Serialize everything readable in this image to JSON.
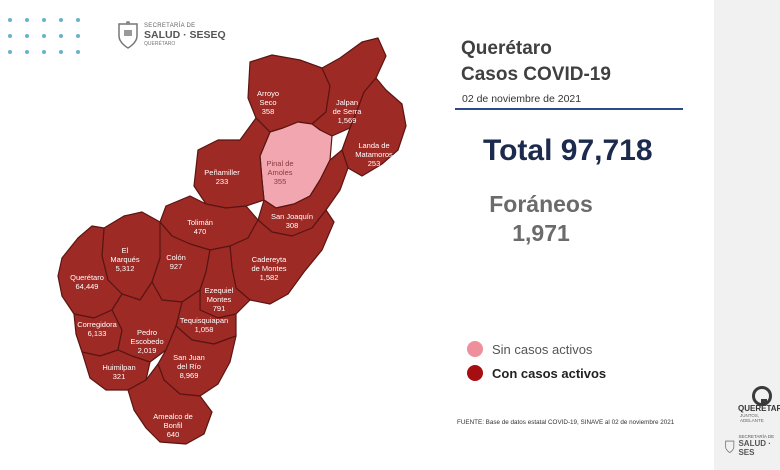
{
  "header": {
    "org_line1": "SECRETARÍA DE",
    "org_line2": "SALUD · SESEQ",
    "org_line3": "QUERÉTARO"
  },
  "title_line1": "Querétaro",
  "title_line2": "Casos COVID-19",
  "date": "02 de noviembre de 2021",
  "total": "Total 97,718",
  "foraneos_label": "Foráneos",
  "foraneos_value": "1,971",
  "legend": [
    {
      "label": "Sin casos activos",
      "color": "#ee8f9b"
    },
    {
      "label": "Con casos activos",
      "color": "#a50f12"
    }
  ],
  "source": "FUENTE:  Base de datos estatal  COVID-19,  SINAVE  al 02 de noviembre 2021",
  "colors": {
    "active": "#9e2a25",
    "inactive": "#f2a7b0",
    "border": "#5a1512",
    "accent_rule": "#2d4a8a"
  },
  "municipalities": [
    {
      "name_lines": [
        "Arroyo",
        "Seco"
      ],
      "cases": "358",
      "status": "active"
    },
    {
      "name_lines": [
        "Jalpan",
        "de Serra"
      ],
      "cases": "1,569",
      "status": "active"
    },
    {
      "name_lines": [
        "Landa de",
        "Matamoros"
      ],
      "cases": "253",
      "status": "active"
    },
    {
      "name_lines": [
        "Pinal de",
        "Amoles"
      ],
      "cases": "355",
      "status": "inactive"
    },
    {
      "name_lines": [
        "Peñamiller"
      ],
      "cases": "233",
      "status": "active"
    },
    {
      "name_lines": [
        "San Joaquín"
      ],
      "cases": "308",
      "status": "active"
    },
    {
      "name_lines": [
        "Tolimán"
      ],
      "cases": "470",
      "status": "active"
    },
    {
      "name_lines": [
        "Cadereyta",
        "de Montes"
      ],
      "cases": "1,582",
      "status": "active"
    },
    {
      "name_lines": [
        "El",
        "Marqués"
      ],
      "cases": "5,312",
      "status": "active"
    },
    {
      "name_lines": [
        "Colón"
      ],
      "cases": "927",
      "status": "active"
    },
    {
      "name_lines": [
        "Querétaro"
      ],
      "cases": "64,449",
      "status": "active"
    },
    {
      "name_lines": [
        "Ezequiel",
        "Montes"
      ],
      "cases": "791",
      "status": "active"
    },
    {
      "name_lines": [
        "Tequisquiapan"
      ],
      "cases": "1,058",
      "status": "active"
    },
    {
      "name_lines": [
        "Corregidora"
      ],
      "cases": "6,133",
      "status": "active"
    },
    {
      "name_lines": [
        "Pedro",
        "Escobedo"
      ],
      "cases": "2,019",
      "status": "active"
    },
    {
      "name_lines": [
        "San Juan",
        "del Río"
      ],
      "cases": "8,969",
      "status": "active"
    },
    {
      "name_lines": [
        "Huimilpan"
      ],
      "cases": "321",
      "status": "active"
    },
    {
      "name_lines": [
        "Amealco de",
        "Bonfil"
      ],
      "cases": "640",
      "status": "active"
    }
  ],
  "right_panel": {
    "brand": "QUERÉTARO",
    "brand_sub": "JUNTOS, ADELANTE",
    "bottom_line1": "SECRETARÍA DE",
    "bottom_line2": "SALUD · SES"
  }
}
